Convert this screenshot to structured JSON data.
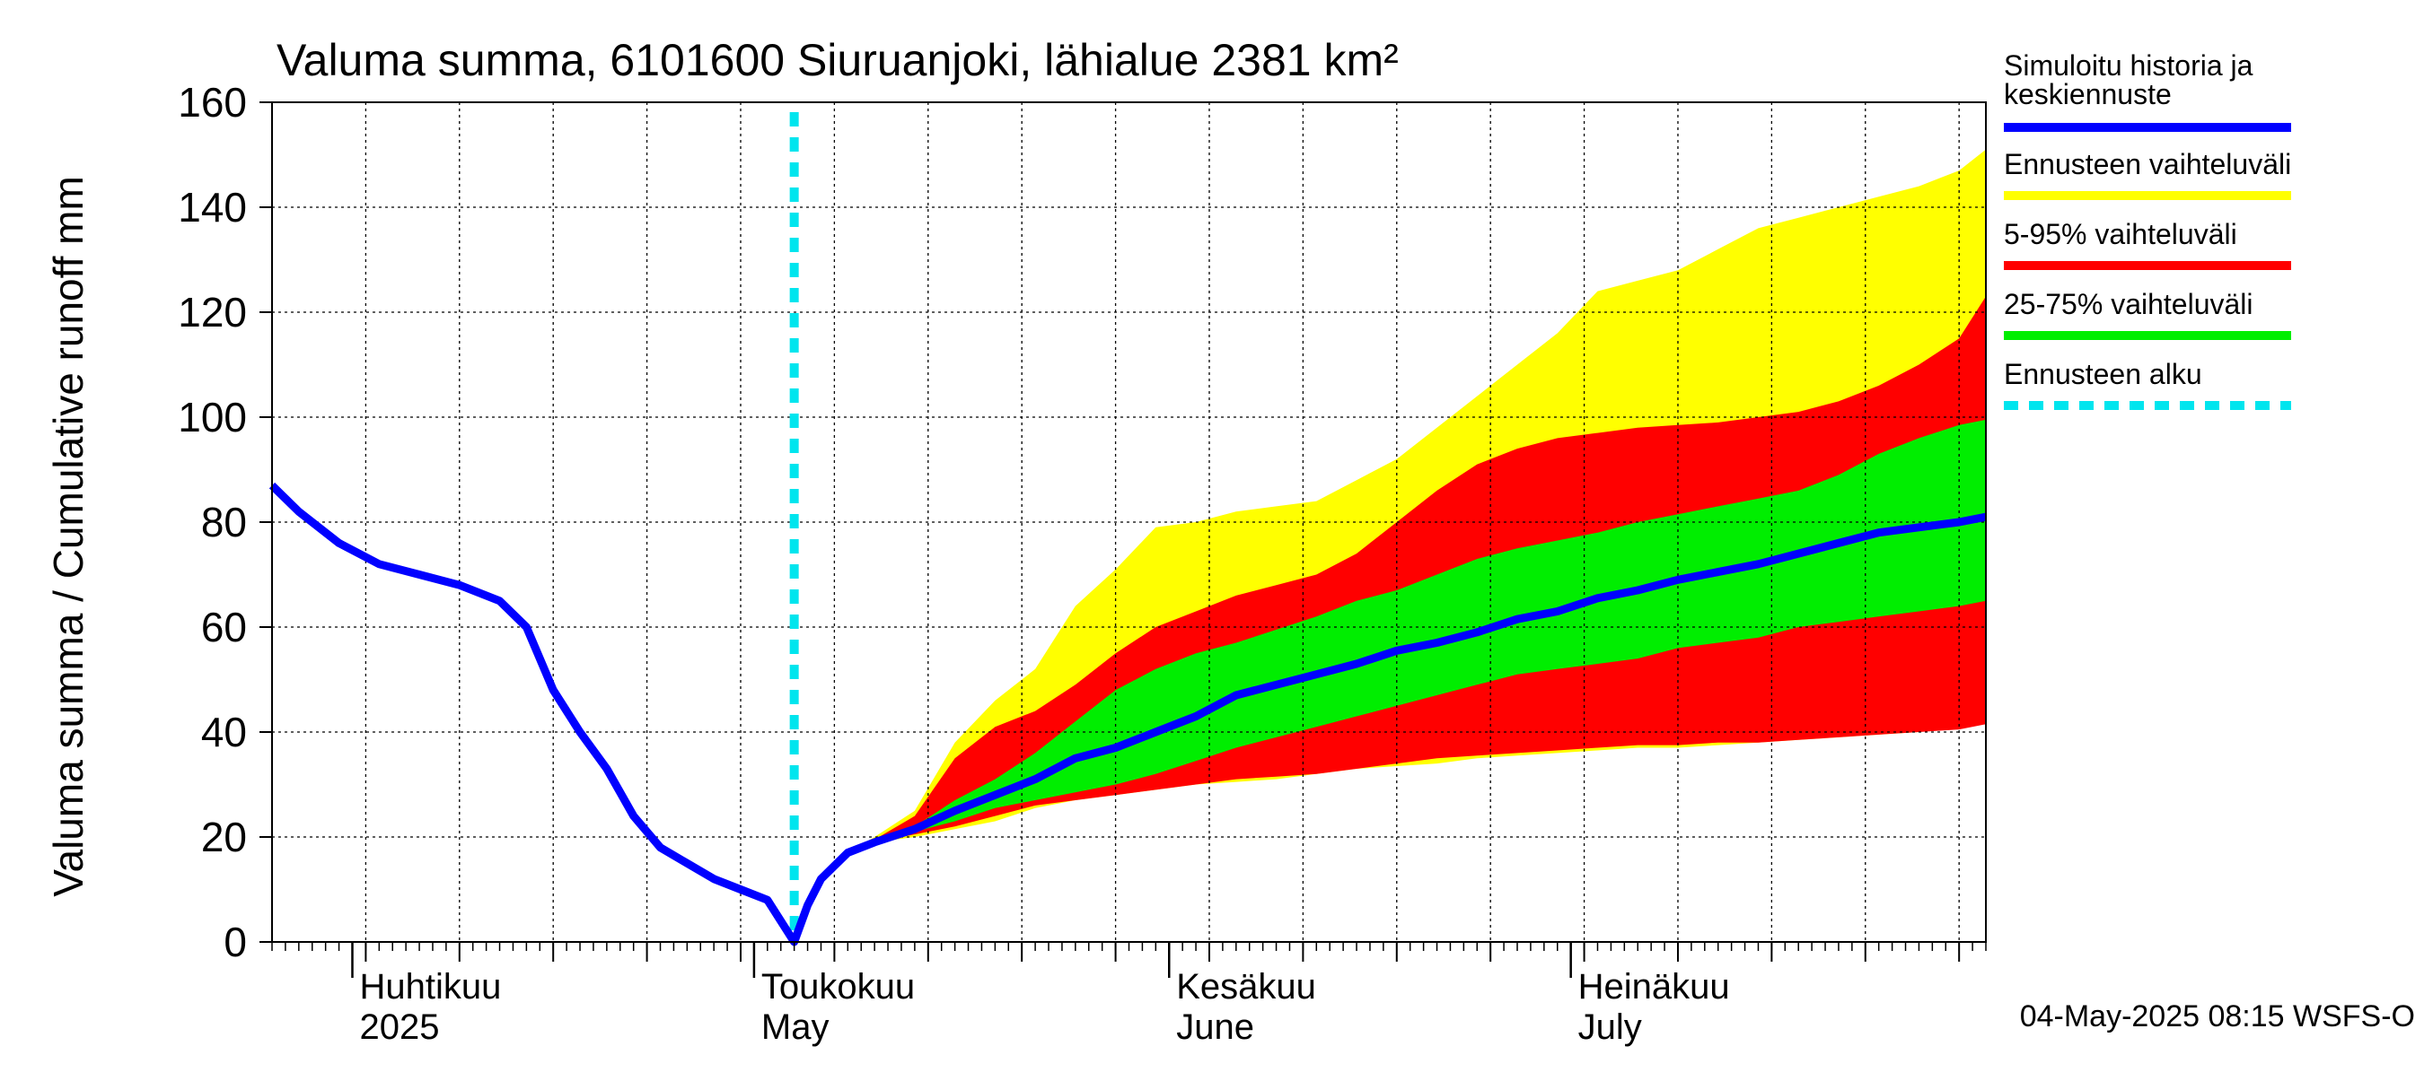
{
  "chart_data": {
    "type": "area",
    "title": "Valuma summa, 6101600 Siuruanjoki, lähialue 2381 km²",
    "ylabel": "Valuma summa / Cumulative runoff    mm",
    "ylim": [
      0,
      160
    ],
    "yticks": [
      0,
      20,
      40,
      60,
      80,
      100,
      120,
      140,
      160
    ],
    "grid": true,
    "legend_position": "right",
    "x_start": "2025-03-26",
    "x_end": "2025-08-01",
    "forecast_start": "2025-05-04",
    "month_labels": [
      {
        "date": "2025-04-01",
        "fi": "Huhtikuu",
        "en": "2025"
      },
      {
        "date": "2025-05-01",
        "fi": "Toukokuu",
        "en": "May"
      },
      {
        "date": "2025-06-01",
        "fi": "Kesäkuu",
        "en": "June"
      },
      {
        "date": "2025-07-01",
        "fi": "Heinäkuu",
        "en": "July"
      }
    ],
    "legend": [
      {
        "label": "Simuloitu historia ja keskiennuste",
        "color": "#0000ff",
        "style": "solid"
      },
      {
        "label": "Ennusteen vaihteluväli",
        "color": "#ffff00",
        "style": "solid"
      },
      {
        "label": "5-95% vaihteluväli",
        "color": "#ff0000",
        "style": "solid"
      },
      {
        "label": "25-75% vaihteluväli",
        "color": "#00ee00",
        "style": "solid"
      },
      {
        "label": "Ennusteen alku",
        "color": "#00e5ee",
        "style": "dashed"
      }
    ],
    "history": {
      "name": "Simuloitu historia ja keskiennuste",
      "x": [
        "2025-03-26",
        "2025-03-28",
        "2025-03-31",
        "2025-04-03",
        "2025-04-06",
        "2025-04-09",
        "2025-04-12",
        "2025-04-14",
        "2025-04-16",
        "2025-04-18",
        "2025-04-20",
        "2025-04-22",
        "2025-04-24",
        "2025-04-26",
        "2025-04-28",
        "2025-04-30",
        "2025-05-02",
        "2025-05-04"
      ],
      "y": [
        87,
        82,
        76,
        72,
        70,
        68,
        65,
        60,
        48,
        40,
        33,
        24,
        18,
        15,
        12,
        10,
        8,
        0
      ]
    },
    "forecast": {
      "x": [
        "2025-05-04",
        "2025-05-05",
        "2025-05-06",
        "2025-05-08",
        "2025-05-10",
        "2025-05-13",
        "2025-05-16",
        "2025-05-19",
        "2025-05-22",
        "2025-05-25",
        "2025-05-28",
        "2025-05-31",
        "2025-06-03",
        "2025-06-06",
        "2025-06-09",
        "2025-06-12",
        "2025-06-15",
        "2025-06-18",
        "2025-06-21",
        "2025-06-24",
        "2025-06-27",
        "2025-06-30",
        "2025-07-03",
        "2025-07-06",
        "2025-07-09",
        "2025-07-12",
        "2025-07-15",
        "2025-07-18",
        "2025-07-21",
        "2025-07-24",
        "2025-07-27",
        "2025-07-30",
        "2025-08-01"
      ],
      "median": [
        0,
        7,
        12,
        17,
        19,
        21.5,
        25,
        28,
        31,
        35,
        37,
        40,
        43,
        47,
        49,
        51,
        53,
        55.5,
        57,
        59,
        61.5,
        63,
        65.5,
        67,
        69,
        70.5,
        72,
        74,
        76,
        78,
        79,
        80,
        81
      ],
      "p25": [
        0,
        7,
        12,
        17,
        19,
        21,
        23,
        25.5,
        27,
        28.5,
        30,
        32,
        34.5,
        37,
        39,
        41,
        43,
        45,
        47,
        49,
        51,
        52,
        53,
        54,
        56,
        57,
        58,
        60,
        61,
        62,
        63,
        64,
        65
      ],
      "p75": [
        0,
        7,
        12,
        17,
        19,
        22,
        27,
        31,
        36,
        42,
        48,
        52,
        55,
        57,
        59.5,
        62,
        65,
        67,
        70,
        73,
        75,
        76.5,
        78,
        80,
        81.5,
        83,
        84.5,
        86,
        89,
        93,
        96,
        98.5,
        99.5
      ],
      "p5": [
        0,
        7,
        12,
        17,
        19,
        20.5,
        22,
        24,
        26,
        27,
        28,
        29,
        30,
        31,
        31.5,
        32,
        33,
        34,
        35,
        35.5,
        36,
        36.5,
        37,
        37.5,
        37.5,
        38,
        38,
        38.5,
        39,
        39.5,
        40,
        40.5,
        41.5
      ],
      "p95": [
        0,
        7,
        12,
        17,
        19.5,
        24,
        35,
        41,
        44,
        49,
        55,
        60,
        63,
        66,
        68,
        70,
        74,
        80,
        86,
        91,
        94,
        96,
        97,
        98,
        98.5,
        99,
        100,
        101,
        103,
        106,
        110,
        115,
        123
      ],
      "min": [
        0,
        7,
        12,
        17,
        19,
        20,
        21.5,
        23,
        25.5,
        27,
        28,
        29,
        30,
        30.5,
        31,
        32,
        33,
        33.5,
        34,
        35,
        35.5,
        36,
        36.5,
        37,
        37,
        37.5,
        38,
        38.5,
        39,
        39.5,
        40,
        41,
        42
      ],
      "max": [
        0,
        7,
        12,
        17,
        20,
        25,
        38,
        46,
        52,
        64,
        71,
        79,
        80,
        82,
        83,
        84,
        88,
        92,
        98,
        104,
        110,
        116,
        124,
        126,
        128,
        132,
        136,
        138,
        140,
        142,
        144,
        147,
        151
      ]
    }
  },
  "timestamp": "04-May-2025 08:15 WSFS-O"
}
